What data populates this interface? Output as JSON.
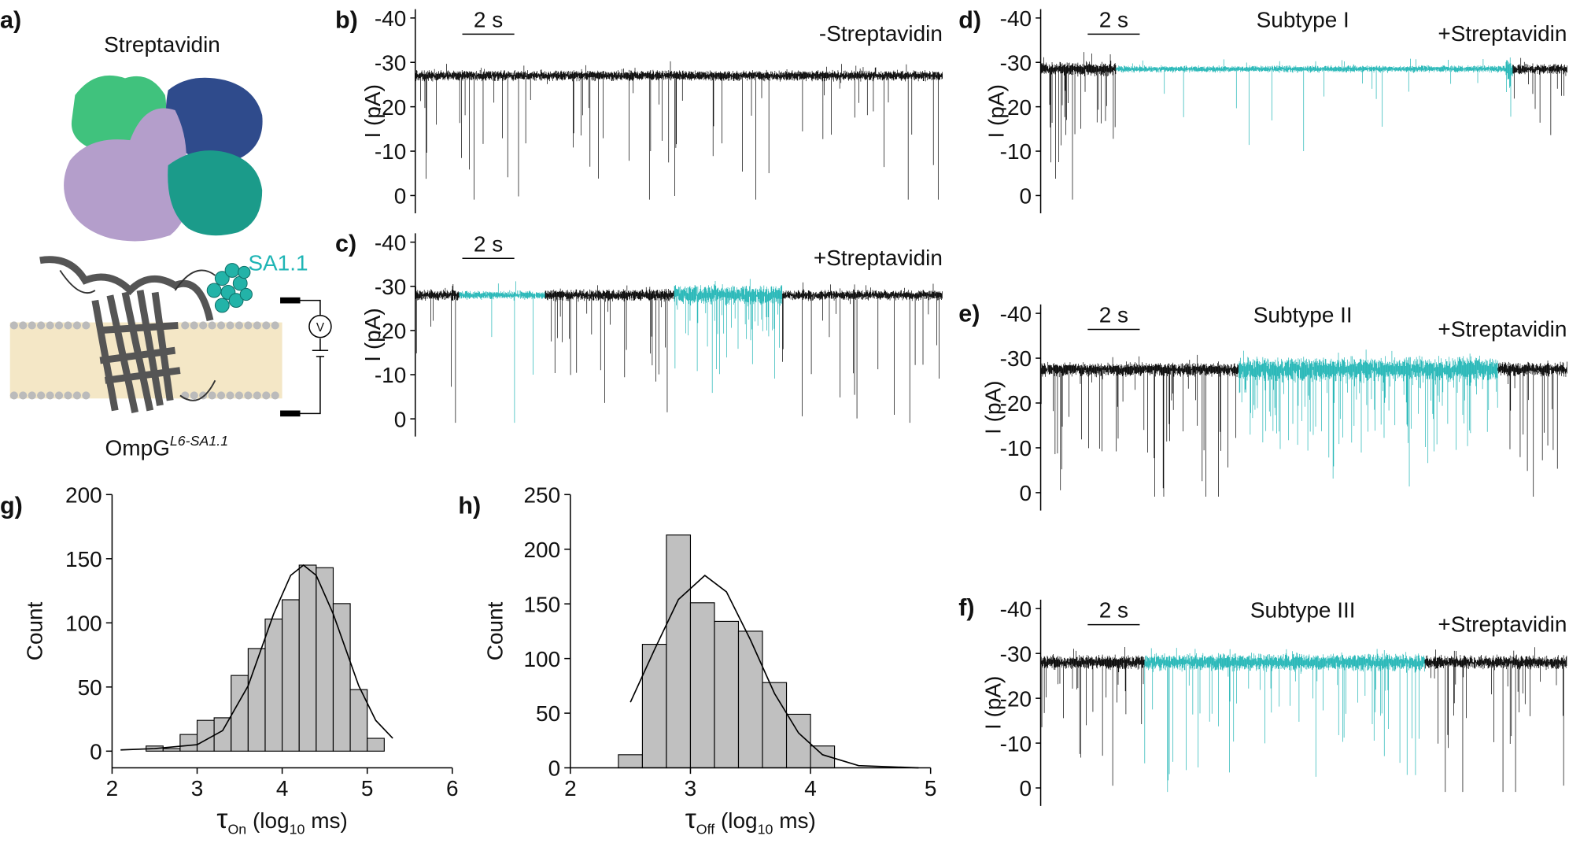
{
  "diagram": {
    "panel": "a)",
    "protein": "Streptavidin",
    "tag": "SA1.1",
    "pore": "OmpG",
    "pore_sup": "L6-SA1.1",
    "meter": "V"
  },
  "chart_data": [
    {
      "type": "trace",
      "panel": "b)",
      "title": "-Streptavidin",
      "ylabel": "I (pA)",
      "scalebar": "2 s",
      "ylim": [
        4,
        -42
      ],
      "yticks": [
        -40,
        -30,
        -20,
        -10,
        0
      ],
      "baseline": -27,
      "color": "#000000",
      "bound_color": "#1fb5b5"
    },
    {
      "type": "trace",
      "panel": "c)",
      "title": "+Streptavidin",
      "ylabel": "I (pA)",
      "scalebar": "2 s",
      "ylim": [
        4,
        -42
      ],
      "yticks": [
        -40,
        -30,
        -20,
        -10,
        0
      ],
      "baseline": -28,
      "color": "#000000",
      "bound_color": "#1fb5b5"
    },
    {
      "type": "trace",
      "panel": "d)",
      "subtitle": "Subtype I",
      "title": "+Streptavidin",
      "ylabel": "I (pA)",
      "scalebar": "2 s",
      "ylim": [
        4,
        -42
      ],
      "yticks": [
        -40,
        -30,
        -20,
        -10,
        0
      ],
      "baseline": -28.5,
      "color": "#000000",
      "bound_color": "#1fb5b5"
    },
    {
      "type": "trace",
      "panel": "e)",
      "subtitle": "Subtype II",
      "title": "+Streptavidin",
      "ylabel": "I (pA)",
      "scalebar": "2 s",
      "ylim": [
        4,
        -42
      ],
      "yticks": [
        -40,
        -30,
        -20,
        -10,
        0
      ],
      "baseline": -27.5,
      "color": "#000000",
      "bound_color": "#1fb5b5"
    },
    {
      "type": "trace",
      "panel": "f)",
      "subtitle": "Subtype III",
      "title": "+Streptavidin",
      "ylabel": "I (pA)",
      "scalebar": "2 s",
      "ylim": [
        4,
        -42
      ],
      "yticks": [
        -40,
        -30,
        -20,
        -10,
        0
      ],
      "baseline": -28,
      "color": "#000000",
      "bound_color": "#1fb5b5"
    },
    {
      "type": "histogram",
      "panel": "g)",
      "ylabel": "Count",
      "xlabel": [
        "τ",
        "On",
        " (log",
        "10",
        " ms)"
      ],
      "bins": [
        2.4,
        2.6,
        2.8,
        3.0,
        3.2,
        3.4,
        3.6,
        3.8,
        4.0,
        4.2,
        4.4,
        4.6,
        4.8,
        5.0,
        5.2
      ],
      "counts": [
        4,
        2,
        13,
        24,
        26,
        59,
        80,
        103,
        118,
        145,
        143,
        115,
        48,
        10
      ],
      "color": "#c0c0c0",
      "fit": {
        "x": [
          2.1,
          2.5,
          3.0,
          3.3,
          3.6,
          3.9,
          4.1,
          4.25,
          4.4,
          4.6,
          4.9,
          5.1,
          5.3
        ],
        "values": [
          1,
          2,
          5,
          16,
          51,
          107,
          137,
          145,
          137,
          107,
          51,
          24,
          10
        ],
        "color": "#000000"
      },
      "xlim": [
        2,
        6
      ],
      "xticks": [
        2,
        3,
        4,
        5,
        6
      ],
      "ylim": [
        -13,
        200
      ],
      "yticks": [
        0,
        50,
        100,
        150,
        200
      ]
    },
    {
      "type": "histogram",
      "panel": "h)",
      "ylabel": "Count",
      "xlabel": [
        "τ",
        "Off",
        " (log",
        "10",
        " ms)"
      ],
      "bins": [
        2.4,
        2.6,
        2.8,
        3.0,
        3.2,
        3.4,
        3.6,
        3.8,
        4.0,
        4.2
      ],
      "counts": [
        12,
        113,
        213,
        151,
        134,
        125,
        78,
        49,
        20
      ],
      "color": "#c0c0c0",
      "fit": {
        "x": [
          2.5,
          2.7,
          2.9,
          3.12,
          3.3,
          3.5,
          3.7,
          3.9,
          4.1,
          4.4,
          4.9
        ],
        "values": [
          60,
          108,
          154,
          176,
          161,
          117,
          68,
          32,
          12,
          2,
          0
        ],
        "color": "#000000"
      },
      "xlim": [
        2,
        5
      ],
      "xticks": [
        2,
        3,
        4,
        5
      ],
      "ylim": [
        0,
        250
      ],
      "yticks": [
        0,
        50,
        100,
        150,
        200,
        250
      ]
    }
  ]
}
